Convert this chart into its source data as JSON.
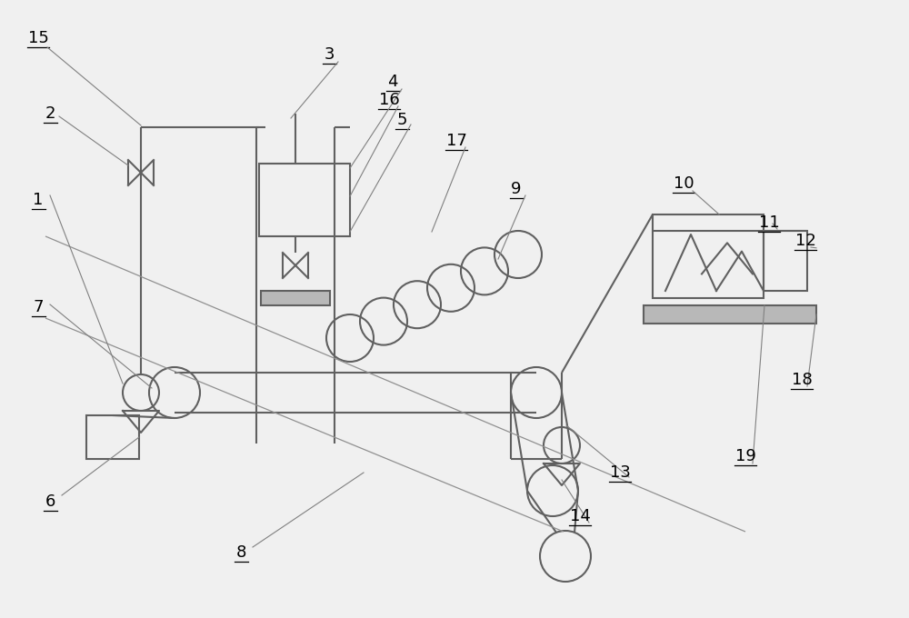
{
  "bg_color": "#f0f0f0",
  "line_color": "#606060",
  "lw": 1.5,
  "font_size": 13,
  "label_lw": 0.8,
  "label_color": "#808080"
}
